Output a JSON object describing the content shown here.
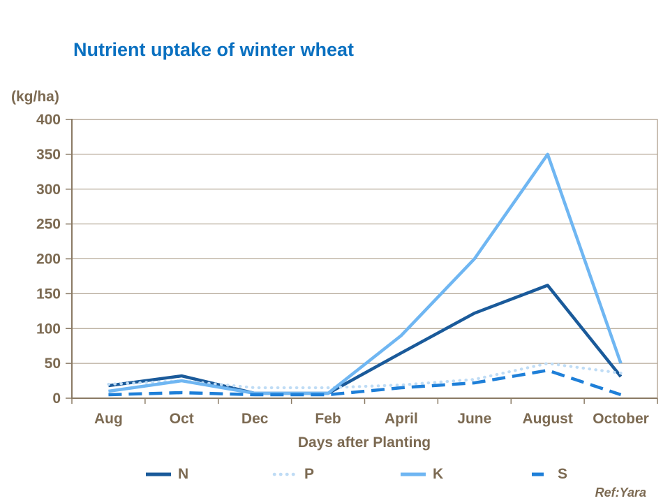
{
  "colors": {
    "background": "#FFFFFF",
    "title_accent": "#0A70C0",
    "axis_text": "#7C6A52",
    "grid_line": "#A69782",
    "axis_line": "#8A7A64"
  },
  "footer": {
    "ref": "Ref:Yara"
  },
  "chart_data": {
    "type": "line",
    "title": "Nutrient uptake of winter wheat",
    "ylabel": "(kg/ha)",
    "xlabel": "Days after Planting",
    "ylim": [
      0,
      400
    ],
    "yticks": [
      0,
      50,
      100,
      150,
      200,
      250,
      300,
      350,
      400
    ],
    "grid": true,
    "legend_position": "bottom",
    "categories": [
      "Aug",
      "Oct",
      "Dec",
      "Feb",
      "April",
      "June",
      "August",
      "October"
    ],
    "series": [
      {
        "name": "N",
        "style": "solid",
        "color": "#1A5A9A",
        "values": [
          18,
          32,
          7,
          7,
          65,
          122,
          162,
          31
        ]
      },
      {
        "name": "P",
        "style": "dotted",
        "color": "#BFDCF5",
        "values": [
          20,
          25,
          15,
          15,
          19,
          27,
          50,
          36
        ]
      },
      {
        "name": "K",
        "style": "solid",
        "color": "#6FB6F2",
        "values": [
          10,
          25,
          7,
          7,
          90,
          200,
          350,
          50
        ]
      },
      {
        "name": "S",
        "style": "dashed",
        "color": "#1E7FD8",
        "values": [
          5,
          8,
          5,
          5,
          15,
          22,
          40,
          5
        ]
      }
    ]
  }
}
